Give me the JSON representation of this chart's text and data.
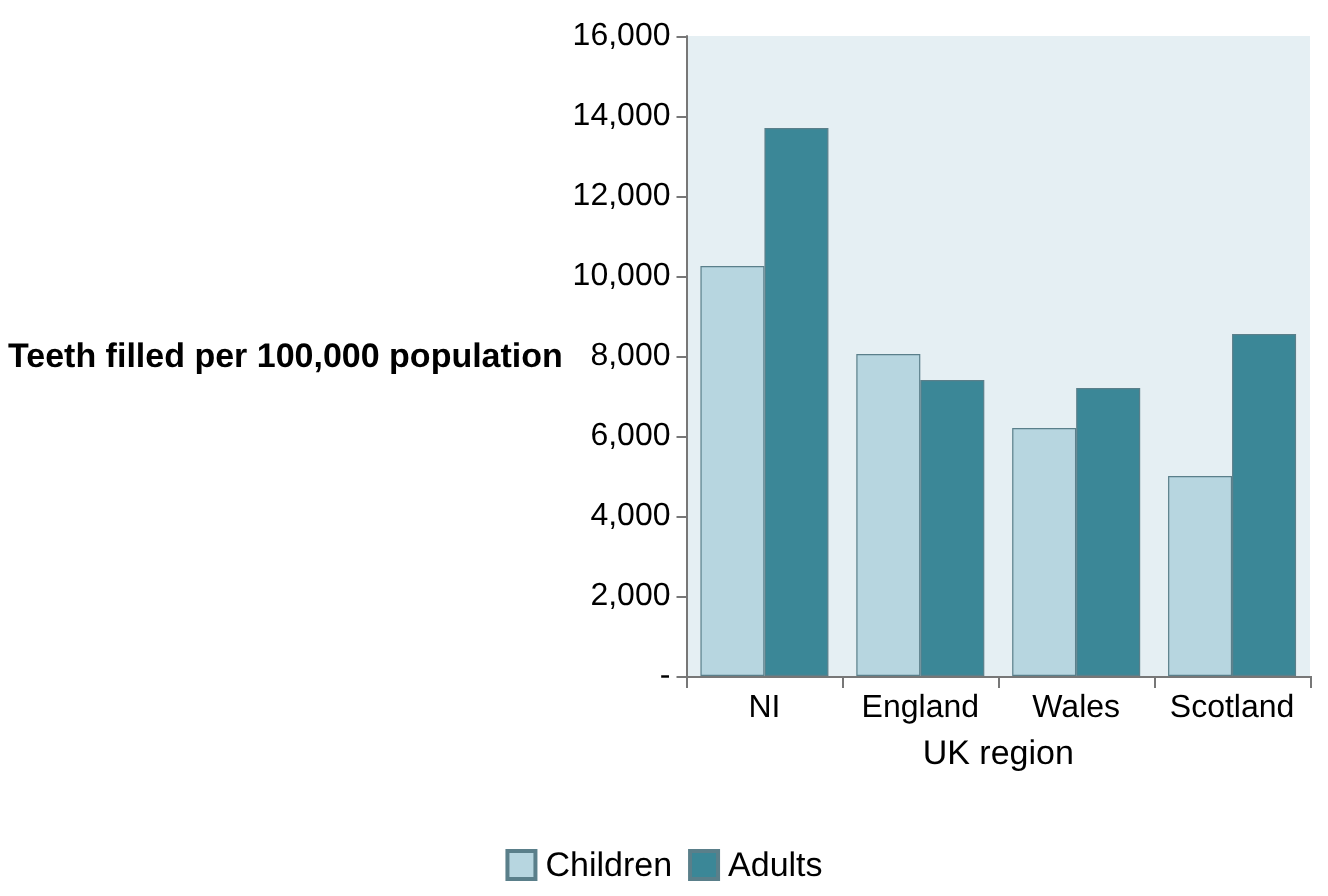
{
  "chart_data": {
    "type": "bar",
    "xlabel": "UK region",
    "ylabel": "Teeth filled per 100,000 population",
    "categories": [
      "NI",
      "England",
      "Wales",
      "Scotland"
    ],
    "series": [
      {
        "name": "Children",
        "color": "#b7d6e0",
        "values": [
          10250,
          8050,
          6200,
          5000
        ]
      },
      {
        "name": "Adults",
        "color": "#3b8797",
        "values": [
          13700,
          7400,
          7200,
          8550
        ]
      }
    ],
    "ylim": [
      0,
      16000
    ],
    "yticks": [
      {
        "value": 0,
        "label": "-"
      },
      {
        "value": 2000,
        "label": "2,000"
      },
      {
        "value": 4000,
        "label": "4,000"
      },
      {
        "value": 6000,
        "label": "6,000"
      },
      {
        "value": 8000,
        "label": "8,000"
      },
      {
        "value": 10000,
        "label": "10,000"
      },
      {
        "value": 12000,
        "label": "12,000"
      },
      {
        "value": 14000,
        "label": "14,000"
      },
      {
        "value": 16000,
        "label": "16,000"
      }
    ],
    "grid": false,
    "legend": "bottom"
  }
}
